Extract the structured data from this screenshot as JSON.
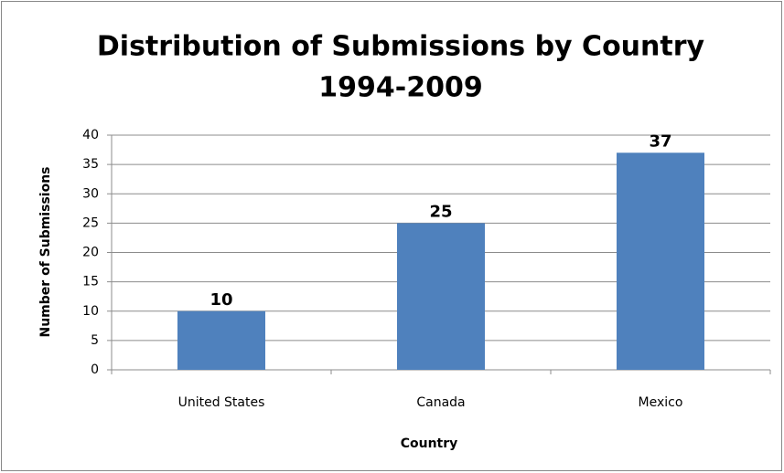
{
  "chart_data": {
    "type": "bar",
    "title": "Distribution of Submissions by Country",
    "subtitle": "1994-2009",
    "x_label": "Country",
    "y_label": "Number of Submissions",
    "categories": [
      "United States",
      "Canada",
      "Mexico"
    ],
    "values": [
      10,
      25,
      37
    ],
    "color": "#4f81bd",
    "ylim": [
      0,
      40
    ],
    "yticks": [
      0,
      5,
      10,
      15,
      20,
      25,
      30,
      35,
      40
    ],
    "grid": true
  }
}
